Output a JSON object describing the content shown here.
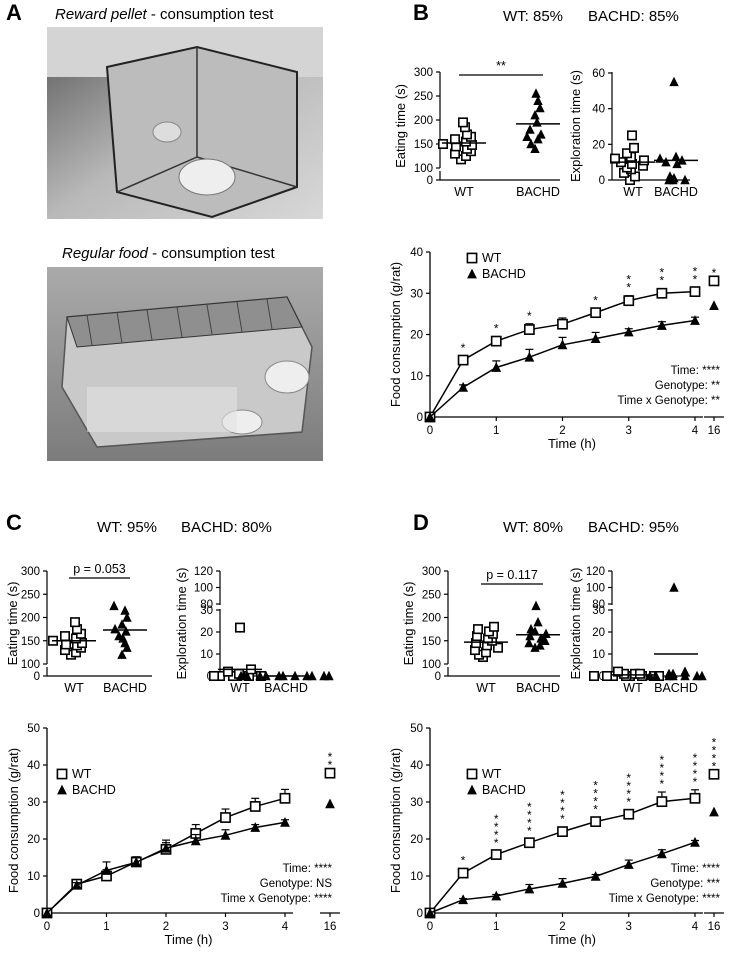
{
  "panelA": {
    "letter": "A",
    "photo1_title_italic": "Reward pellet",
    "photo1_title_rest": " - consumption test",
    "photo2_title_italic": "Regular food",
    "photo2_title_rest": " - consumption test"
  },
  "panelB": {
    "letter": "B",
    "wt_pct": "WT: 85%",
    "bachd_pct": "BACHD: 85%"
  },
  "panelC": {
    "letter": "C",
    "wt_pct": "WT: 95%",
    "bachd_pct": "BACHD: 80%"
  },
  "panelD": {
    "letter": "D",
    "wt_pct": "WT: 80%",
    "bachd_pct": "BACHD: 95%"
  },
  "colors": {
    "ink": "#000000",
    "photo_gray": "#9a9a9a"
  },
  "chart_data": [
    {
      "id": "B-eating",
      "type": "scatter",
      "ylabel": "Eating time (s)",
      "categories": [
        "WT",
        "BACHD"
      ],
      "yticks": [
        0,
        50,
        100,
        150,
        200,
        250,
        300
      ],
      "series": [
        {
          "name": "WT",
          "marker": "square",
          "values": [
            118,
            125,
            130,
            135,
            140,
            145,
            148,
            150,
            155,
            160,
            165,
            170,
            185,
            195
          ],
          "mean": 152
        },
        {
          "name": "BACHD",
          "marker": "triangle",
          "values": [
            140,
            150,
            160,
            165,
            170,
            180,
            195,
            210,
            225,
            240,
            255
          ],
          "mean": 192
        }
      ],
      "significance": "**"
    },
    {
      "id": "B-exploration",
      "type": "scatter",
      "ylabel": "Exploration time (s)",
      "categories": [
        "WT",
        "BACHD"
      ],
      "yticks": [
        0,
        20,
        40,
        60
      ],
      "series": [
        {
          "name": "WT",
          "marker": "square",
          "values": [
            0,
            2,
            4,
            6,
            7,
            8,
            9,
            10,
            11,
            12,
            13,
            15,
            18,
            25
          ],
          "mean": 10
        },
        {
          "name": "BACHD",
          "marker": "triangle",
          "values": [
            0,
            0,
            0,
            1,
            2,
            9,
            10,
            11,
            12,
            13,
            55
          ],
          "mean": 11
        }
      ]
    },
    {
      "id": "B-food",
      "type": "line",
      "ylabel": "Food consumption (g/rat)",
      "xlabel": "Time (h)",
      "xticks": [
        "0",
        "1",
        "2",
        "3",
        "4",
        "16"
      ],
      "yticks": [
        0,
        10,
        20,
        30,
        40
      ],
      "x": [
        0,
        0.5,
        1,
        1.5,
        2,
        2.5,
        3,
        3.5,
        4
      ],
      "series": [
        {
          "name": "WT",
          "marker": "square",
          "values": [
            0,
            13.8,
            18.4,
            21.2,
            22.5,
            25.3,
            28.2,
            30,
            30.4
          ],
          "err": [
            0,
            1,
            1.1,
            1.4,
            1.5,
            1,
            1.2,
            1.1,
            1
          ],
          "late": 33
        },
        {
          "name": "BACHD",
          "marker": "triangle",
          "values": [
            0,
            7.2,
            12,
            14.5,
            17.5,
            19,
            20.6,
            22.2,
            23.4
          ],
          "err": [
            0,
            0.6,
            1.6,
            1.9,
            1.8,
            1.5,
            0.8,
            0.9,
            0.8
          ],
          "late": 27
        }
      ],
      "stars": {
        "0.5": "*",
        "1": "*",
        "1.5": "*",
        "2.5": "*",
        "3": "**",
        "3.5": "**",
        "4": "**",
        "16": "*"
      },
      "stats": [
        "Time: ****",
        "Genotype: **",
        "Time x Genotype: **"
      ]
    },
    {
      "id": "C-eating",
      "type": "scatter",
      "ylabel": "Eating time (s)",
      "categories": [
        "WT",
        "BACHD"
      ],
      "yticks": [
        0,
        50,
        100,
        150,
        200,
        250,
        300
      ],
      "series": [
        {
          "name": "WT",
          "marker": "square",
          "values": [
            120,
            125,
            130,
            135,
            140,
            142,
            145,
            150,
            155,
            160,
            165,
            175,
            190
          ],
          "mean": 150
        },
        {
          "name": "BACHD",
          "marker": "triangle",
          "values": [
            120,
            135,
            145,
            155,
            160,
            170,
            175,
            185,
            200,
            215,
            225
          ],
          "mean": 173
        }
      ],
      "significance": "p = 0.053"
    },
    {
      "id": "C-exploration",
      "type": "scatter",
      "ylabel": "Exploration time (s)",
      "categories": [
        "WT",
        "BACHD"
      ],
      "yticks": [
        0,
        10,
        20,
        30,
        80,
        100,
        120
      ],
      "series": [
        {
          "name": "WT",
          "marker": "square",
          "values": [
            0,
            0,
            0,
            0,
            0,
            0,
            1,
            2,
            3,
            22
          ],
          "mean": 3
        },
        {
          "name": "BACHD",
          "marker": "triangle",
          "values": [
            0,
            0,
            0,
            0,
            0,
            0,
            0,
            0,
            0,
            0,
            0
          ],
          "mean": 0
        }
      ]
    },
    {
      "id": "C-food",
      "type": "line",
      "ylabel": "Food consumption (g/rat)",
      "xlabel": "Time (h)",
      "xticks": [
        "0",
        "1",
        "2",
        "3",
        "4",
        "16"
      ],
      "yticks": [
        0,
        10,
        20,
        30,
        40,
        50
      ],
      "x": [
        0,
        0.5,
        1,
        1.5,
        2,
        2.5,
        3,
        3.5,
        4
      ],
      "series": [
        {
          "name": "WT",
          "marker": "square",
          "values": [
            0,
            7.8,
            10,
            13.8,
            17.2,
            21.5,
            25.8,
            28.8,
            31
          ],
          "err": [
            0,
            0.8,
            1.7,
            1.4,
            1.8,
            2.4,
            2.3,
            2.2,
            2.4
          ],
          "late": 37.8
        },
        {
          "name": "BACHD",
          "marker": "triangle",
          "values": [
            0,
            7.5,
            11.5,
            13.7,
            17.5,
            19.5,
            21,
            23.1,
            24.5
          ],
          "err": [
            0,
            0.7,
            2.3,
            1.2,
            2.2,
            1.7,
            1.5,
            0.8,
            0.7
          ],
          "late": 29.5
        }
      ],
      "stars": {
        "16": "**"
      },
      "stats": [
        "Time: ****",
        "Genotype: NS",
        "Time x Genotype: ****"
      ]
    },
    {
      "id": "D-eating",
      "type": "scatter",
      "ylabel": "Eating time (s)",
      "categories": [
        "WT",
        "BACHD"
      ],
      "yticks": [
        0,
        50,
        100,
        150,
        200,
        250,
        300
      ],
      "series": [
        {
          "name": "WT",
          "marker": "square",
          "values": [
            115,
            120,
            125,
            130,
            135,
            140,
            145,
            150,
            155,
            160,
            165,
            170,
            175,
            180
          ],
          "mean": 147
        },
        {
          "name": "BACHD",
          "marker": "triangle",
          "values": [
            135,
            140,
            145,
            150,
            155,
            160,
            165,
            170,
            175,
            190,
            225
          ],
          "mean": 163
        }
      ],
      "significance": "p = 0.117"
    },
    {
      "id": "D-exploration",
      "type": "scatter",
      "ylabel": "Exploration time (s)",
      "categories": [
        "WT",
        "BACHD"
      ],
      "yticks": [
        0,
        10,
        20,
        30,
        80,
        100,
        120
      ],
      "series": [
        {
          "name": "WT",
          "marker": "square",
          "values": [
            0,
            0,
            0,
            0,
            0,
            0,
            0,
            0,
            1,
            1,
            1,
            2
          ],
          "mean": 0.5
        },
        {
          "name": "BACHD",
          "marker": "triangle",
          "values": [
            0,
            0,
            0,
            0,
            0,
            0,
            0,
            1,
            1,
            2,
            100
          ],
          "mean": 10
        }
      ]
    },
    {
      "id": "D-food",
      "type": "line",
      "ylabel": "Food consumption (g/rat)",
      "xlabel": "Time (h)",
      "xticks": [
        "0",
        "1",
        "2",
        "3",
        "4",
        "16"
      ],
      "yticks": [
        0,
        10,
        20,
        30,
        40,
        50
      ],
      "x": [
        0,
        0.5,
        1,
        1.5,
        2,
        2.5,
        3,
        3.5,
        4
      ],
      "series": [
        {
          "name": "WT",
          "marker": "square",
          "values": [
            0,
            10.8,
            15.8,
            19,
            22,
            24.7,
            26.7,
            30.1,
            31
          ],
          "err": [
            0,
            1.2,
            0.9,
            1,
            1.2,
            1.1,
            1.2,
            2.6,
            2.3
          ],
          "late": 37.5
        },
        {
          "name": "BACHD",
          "marker": "triangle",
          "values": [
            0,
            3.6,
            4.6,
            6.5,
            8,
            9.9,
            13.1,
            16,
            19.1
          ],
          "err": [
            0,
            0.3,
            0.4,
            1.2,
            1.3,
            0.5,
            1.2,
            1.1,
            0.5
          ],
          "late": 27.3
        }
      ],
      "stars": {
        "0.5": "*",
        "1": "****",
        "1.5": "****",
        "2": "****",
        "2.5": "****",
        "3": "****",
        "3.5": "****",
        "4": "****",
        "16": "****"
      },
      "stats": [
        "Time: ****",
        "Genotype: ***",
        "Time x Genotype: ****"
      ]
    }
  ]
}
